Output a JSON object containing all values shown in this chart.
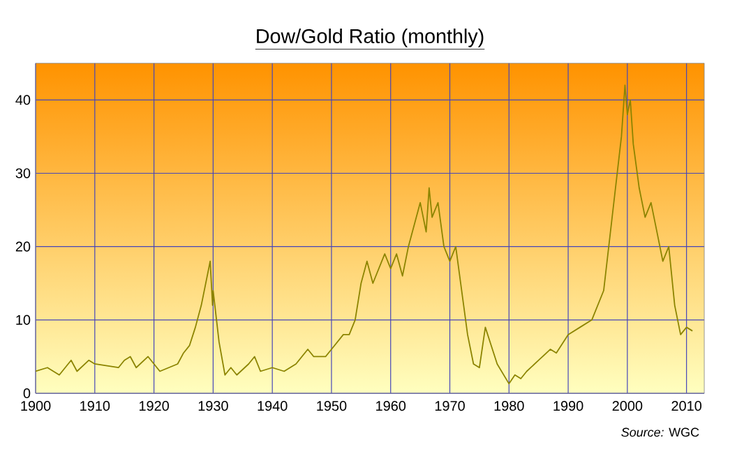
{
  "chart_data": {
    "type": "line",
    "title": "Dow/Gold Ratio (monthly)",
    "x": [
      1900,
      1902,
      1904,
      1906,
      1907,
      1909,
      1910,
      1914,
      1915,
      1916,
      1917,
      1919,
      1921,
      1924,
      1925,
      1926,
      1927,
      1928,
      1929.5,
      1929.9,
      1930,
      1931,
      1932,
      1933,
      1934,
      1936,
      1937,
      1938,
      1940,
      1942,
      1944,
      1946,
      1947,
      1949,
      1950,
      1952,
      1953,
      1954,
      1955,
      1956,
      1957,
      1959,
      1960,
      1961,
      1962,
      1963,
      1965,
      1966,
      1966.5,
      1967,
      1968,
      1969,
      1970,
      1971,
      1972,
      1973,
      1974,
      1975,
      1976,
      1977,
      1978,
      1980,
      1981,
      1982,
      1983,
      1985,
      1987,
      1988,
      1990,
      1992,
      1994,
      1996,
      1998,
      1999,
      1999.6,
      2000,
      2000.5,
      2001,
      2002,
      2003,
      2004,
      2005,
      2006,
      2007,
      2008,
      2009,
      2010,
      2011
    ],
    "series": [
      {
        "color": "#8c8400",
        "values": [
          3,
          3.5,
          2.5,
          4.5,
          3,
          4.5,
          4,
          3.5,
          4.5,
          5,
          3.5,
          5,
          3,
          4,
          5.5,
          6.5,
          9,
          12,
          18,
          12,
          14,
          7,
          2.5,
          3.5,
          2.5,
          4,
          5,
          3,
          3.5,
          3,
          4,
          6,
          5,
          5,
          6,
          8,
          8,
          10,
          15,
          18,
          15,
          19,
          17,
          19,
          16,
          20,
          26,
          22,
          28,
          24,
          26,
          20,
          18,
          20,
          14,
          8,
          4,
          3.5,
          9,
          6.5,
          4,
          1.3,
          2.5,
          2,
          3,
          4.5,
          6,
          5.5,
          8,
          9,
          10,
          14,
          28,
          35,
          42,
          38,
          40,
          34,
          28,
          24,
          26,
          22,
          18,
          20,
          12,
          8,
          9,
          8.5
        ]
      }
    ],
    "xlim": [
      1900,
      2013
    ],
    "xticks": [
      1900,
      1910,
      1920,
      1930,
      1940,
      1950,
      1960,
      1970,
      1980,
      1990,
      2000,
      2010
    ],
    "ylim": [
      0,
      45
    ],
    "yticks": [
      0,
      10,
      20,
      30,
      40
    ],
    "grid": true,
    "marker": "none",
    "line_style": "solid",
    "annotations": [
      "*Source:* WGC"
    ]
  }
}
